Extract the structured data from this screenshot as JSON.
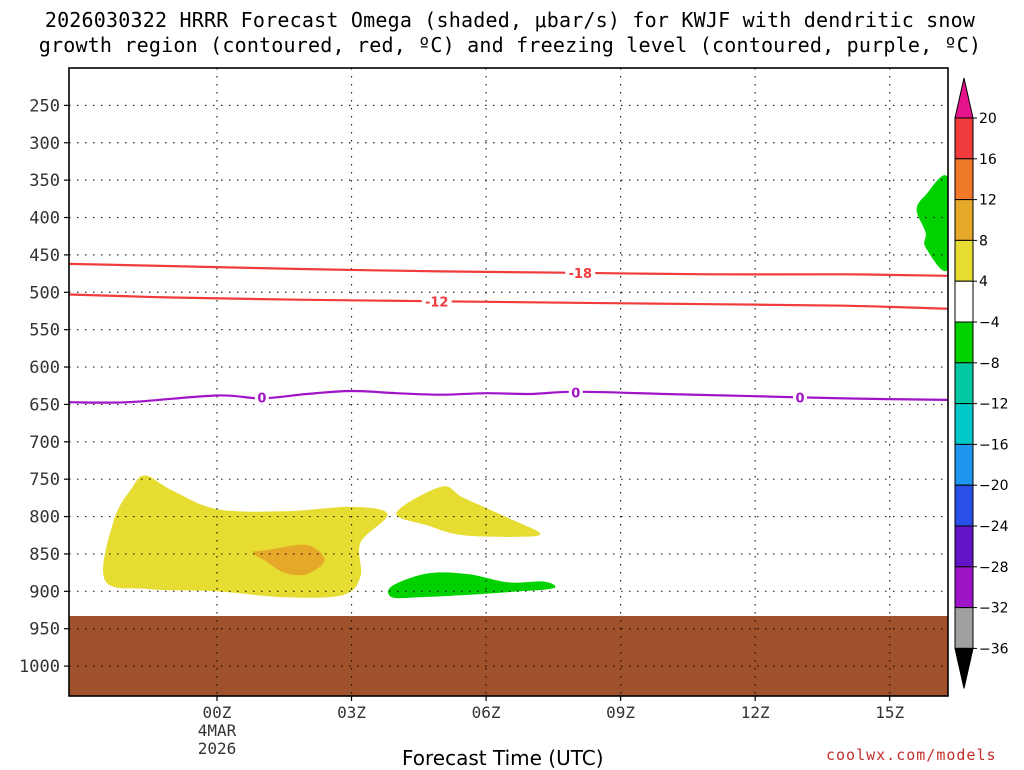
{
  "chart_data": {
    "type": "heatmap",
    "title_line1": "2026030322 HRRR Forecast Omega (shaded, μbar/s) for KWJF with dendritic snow",
    "title_line2": "growth region (contoured, red, ºC) and freezing level (contoured, purple, ºC)",
    "xlabel": "Forecast Time (UTC)",
    "credit": "coolwx.com/models",
    "x_range_hours": [
      -3.3,
      16.3
    ],
    "y_range_hpa": [
      200,
      1040
    ],
    "x_ticks": [
      {
        "hour": 0,
        "label": "00Z",
        "sub1": "4MAR",
        "sub2": "2026"
      },
      {
        "hour": 3,
        "label": "03Z"
      },
      {
        "hour": 6,
        "label": "06Z"
      },
      {
        "hour": 9,
        "label": "09Z"
      },
      {
        "hour": 12,
        "label": "12Z"
      },
      {
        "hour": 15,
        "label": "15Z"
      }
    ],
    "y_ticks": [
      250,
      300,
      350,
      400,
      450,
      500,
      550,
      600,
      650,
      700,
      750,
      800,
      850,
      900,
      950,
      1000
    ],
    "surface_pressure_hpa": 933,
    "surface_color": "#a0522d",
    "colorbar": {
      "labels": [
        "20",
        "16",
        "12",
        "8",
        "4",
        "−4",
        "−8",
        "−12",
        "−16",
        "−20",
        "−24",
        "−28",
        "−32",
        "−36"
      ],
      "colors": [
        "#f03c3c",
        "#f07a28",
        "#e6a828",
        "#e6dc32",
        "#ffffff",
        "#00d200",
        "#00c8a0",
        "#00c8c8",
        "#1e96f0",
        "#2850e6",
        "#6414c8",
        "#a014c8",
        "#a0a0a0"
      ],
      "top_arrow_color": "#e6148c",
      "bottom_arrow_color": "#000000"
    },
    "contours": [
      {
        "name": "isotherm-minus-18",
        "label": "-18",
        "color": "#f03c3c",
        "points": [
          [
            -3.3,
            462
          ],
          [
            -1,
            465
          ],
          [
            2,
            469
          ],
          [
            5,
            472
          ],
          [
            8,
            474
          ],
          [
            11,
            476
          ],
          [
            14,
            476
          ],
          [
            16.3,
            478
          ]
        ],
        "label_at": [
          8.1,
          474
        ]
      },
      {
        "name": "isotherm-minus-12",
        "label": "-12",
        "color": "#f03c3c",
        "points": [
          [
            -3.3,
            503
          ],
          [
            -1,
            507
          ],
          [
            2,
            510
          ],
          [
            5,
            512
          ],
          [
            8,
            514
          ],
          [
            11,
            516
          ],
          [
            14,
            518
          ],
          [
            16.3,
            522
          ]
        ],
        "label_at": [
          4.9,
          512
        ]
      },
      {
        "name": "freezing-level",
        "label": "0",
        "color": "#a014c8",
        "points": [
          [
            -3.3,
            647
          ],
          [
            -2,
            647
          ],
          [
            0,
            638
          ],
          [
            1,
            642
          ],
          [
            2,
            636
          ],
          [
            3,
            632
          ],
          [
            4,
            635
          ],
          [
            5,
            637
          ],
          [
            6,
            635
          ],
          [
            7,
            636
          ],
          [
            8,
            633
          ],
          [
            10,
            636
          ],
          [
            12,
            639
          ],
          [
            14,
            642
          ],
          [
            16.3,
            644
          ]
        ],
        "label_at": [
          [
            1,
            641
          ],
          [
            8,
            634
          ],
          [
            13,
            641
          ]
        ]
      }
    ],
    "omega_regions": [
      {
        "name": "omega-yellow-west",
        "value_class": "4 to 8",
        "color": "#e6dc32",
        "points": [
          [
            -1.6,
            745
          ],
          [
            -1,
            765
          ],
          [
            0,
            790
          ],
          [
            1.5,
            793
          ],
          [
            3,
            787
          ],
          [
            3.8,
            797
          ],
          [
            3.2,
            835
          ],
          [
            3.2,
            880
          ],
          [
            2.8,
            905
          ],
          [
            1.5,
            908
          ],
          [
            0,
            900
          ],
          [
            -1.5,
            897
          ],
          [
            -2.5,
            885
          ],
          [
            -2.3,
            805
          ],
          [
            -1.9,
            762
          ]
        ]
      },
      {
        "name": "omega-orange-core",
        "value_class": "8 to 12",
        "color": "#e6a828",
        "points": [
          [
            1.1,
            845
          ],
          [
            2,
            838
          ],
          [
            2.4,
            858
          ],
          [
            2,
            877
          ],
          [
            1.5,
            875
          ],
          [
            1.1,
            860
          ],
          [
            0.8,
            848
          ]
        ]
      },
      {
        "name": "omega-yellow-east",
        "value_class": "4 to 8",
        "color": "#e6dc32",
        "points": [
          [
            4,
            795
          ],
          [
            5,
            760
          ],
          [
            5.5,
            775
          ],
          [
            6.5,
            802
          ],
          [
            7.2,
            822
          ],
          [
            6.8,
            827
          ],
          [
            5.5,
            825
          ],
          [
            4.7,
            812
          ]
        ]
      },
      {
        "name": "omega-green-lower",
        "value_class": "-4 to -8",
        "color": "#00d200",
        "points": [
          [
            3.9,
            893
          ],
          [
            4.7,
            876
          ],
          [
            5.6,
            877
          ],
          [
            6.5,
            888
          ],
          [
            7.3,
            887
          ],
          [
            7.5,
            896
          ],
          [
            6.5,
            901
          ],
          [
            5.5,
            905
          ],
          [
            4.5,
            908
          ],
          [
            3.9,
            908
          ]
        ]
      },
      {
        "name": "omega-green-upper-right",
        "value_class": "-4 to -8",
        "color": "#00d200",
        "points": [
          [
            16.3,
            348
          ],
          [
            15.8,
            370
          ],
          [
            15.6,
            390
          ],
          [
            15.8,
            420
          ],
          [
            15.8,
            440
          ],
          [
            16.3,
            468
          ]
        ]
      }
    ]
  }
}
